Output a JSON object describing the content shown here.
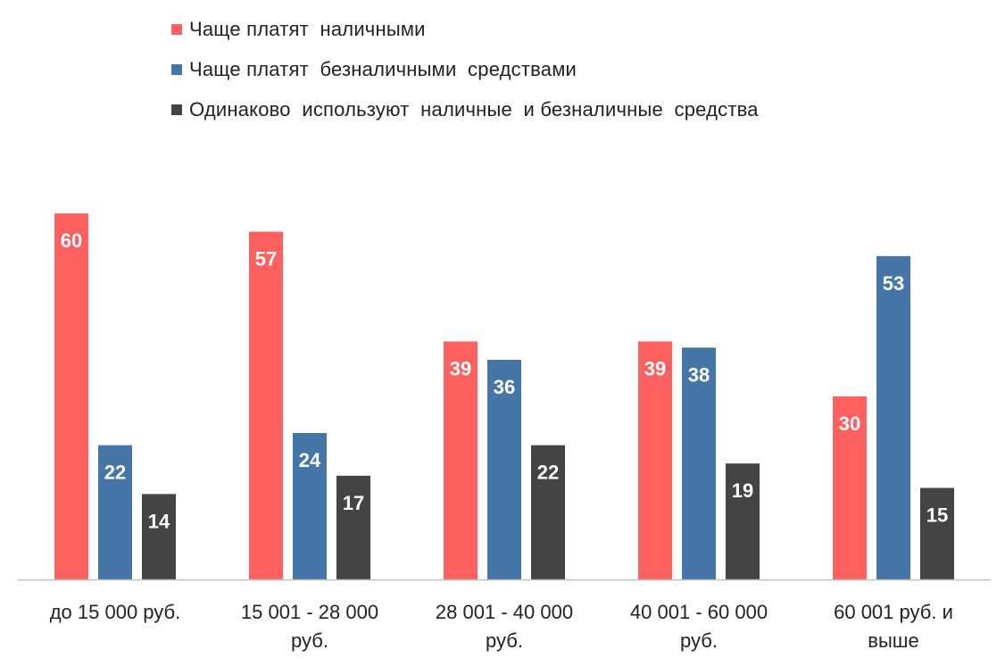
{
  "chart_data": {
    "type": "bar",
    "title": "",
    "xlabel": "",
    "ylabel": "",
    "ylim": [
      0,
      60
    ],
    "grid": false,
    "legend_position": "top-left",
    "categories": [
      [
        "до 15 000  руб."
      ],
      [
        "15 001 - 28 000",
        "руб."
      ],
      [
        "28 001 - 40 000",
        "руб."
      ],
      [
        "40 001 - 60 000",
        "руб."
      ],
      [
        "60 001 руб. и",
        "выше"
      ]
    ],
    "series": [
      {
        "name": "Чаще платят  наличными",
        "color": "#fe5f5f",
        "values": [
          60,
          57,
          39,
          39,
          30
        ]
      },
      {
        "name": "Чаще платят  безналичными  средствами",
        "color": "#4576a7",
        "values": [
          22,
          24,
          36,
          38,
          53
        ]
      },
      {
        "name": "Одинаково  используют  наличные  и безналичные  средства",
        "color": "#444444",
        "values": [
          14,
          17,
          22,
          19,
          15
        ]
      }
    ]
  }
}
